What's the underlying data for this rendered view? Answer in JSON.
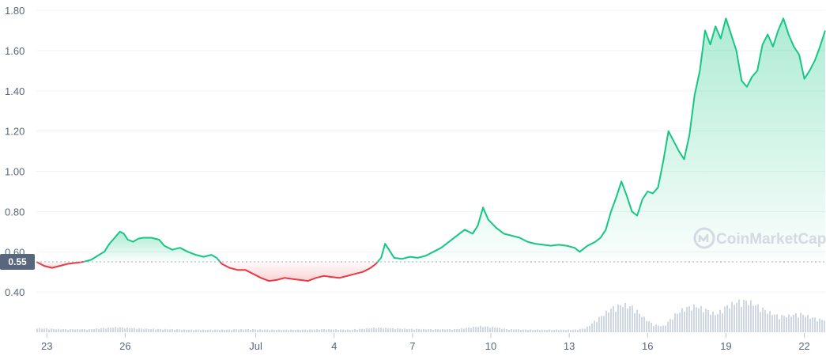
{
  "chart_data": {
    "type": "area",
    "y_ticks": [
      0.4,
      0.6,
      0.8,
      1.0,
      1.2,
      1.4,
      1.6,
      1.8
    ],
    "y_tick_labels": [
      "0.40",
      "0.60",
      "0.80",
      "1.00",
      "1.20",
      "1.40",
      "1.60",
      "1.80"
    ],
    "ylim": [
      0.2,
      1.82
    ],
    "xlim": [
      0,
      30.2
    ],
    "x_ticks": [
      {
        "label": "23",
        "x": 0.4
      },
      {
        "label": "26",
        "x": 3.4
      },
      {
        "label": "Jul",
        "x": 8.4
      },
      {
        "label": "4",
        "x": 11.4
      },
      {
        "label": "7",
        "x": 14.4
      },
      {
        "label": "10",
        "x": 17.4
      },
      {
        "label": "13",
        "x": 20.4
      },
      {
        "label": "16",
        "x": 23.4
      },
      {
        "label": "19",
        "x": 26.4
      },
      {
        "label": "22",
        "x": 29.4
      }
    ],
    "reference": {
      "value": 0.55,
      "label": "0.55"
    },
    "colors": {
      "up": "#16c784",
      "down": "#ea3943",
      "grid": "#eff2f5",
      "volume": "#cfd6e4",
      "ref_bg": "#58667e"
    },
    "watermark": "CoinMarketCap",
    "series": [
      {
        "values": [
          [
            0.0,
            0.55
          ],
          [
            0.3,
            0.53
          ],
          [
            0.6,
            0.52
          ],
          [
            0.9,
            0.53
          ],
          [
            1.2,
            0.54
          ],
          [
            1.5,
            0.545
          ],
          [
            1.8,
            0.55
          ],
          [
            2.1,
            0.56
          ],
          [
            2.4,
            0.585
          ],
          [
            2.6,
            0.6
          ],
          [
            2.8,
            0.64
          ],
          [
            3.0,
            0.67
          ],
          [
            3.2,
            0.7
          ],
          [
            3.35,
            0.69
          ],
          [
            3.5,
            0.66
          ],
          [
            3.7,
            0.65
          ],
          [
            3.9,
            0.665
          ],
          [
            4.1,
            0.67
          ],
          [
            4.4,
            0.67
          ],
          [
            4.7,
            0.66
          ],
          [
            4.9,
            0.63
          ],
          [
            5.2,
            0.61
          ],
          [
            5.5,
            0.62
          ],
          [
            5.8,
            0.6
          ],
          [
            6.1,
            0.585
          ],
          [
            6.4,
            0.575
          ],
          [
            6.7,
            0.585
          ],
          [
            6.9,
            0.57
          ],
          [
            7.1,
            0.54
          ],
          [
            7.4,
            0.52
          ],
          [
            7.7,
            0.51
          ],
          [
            8.0,
            0.51
          ],
          [
            8.3,
            0.49
          ],
          [
            8.6,
            0.47
          ],
          [
            8.9,
            0.455
          ],
          [
            9.2,
            0.46
          ],
          [
            9.5,
            0.47
          ],
          [
            9.8,
            0.465
          ],
          [
            10.1,
            0.46
          ],
          [
            10.4,
            0.455
          ],
          [
            10.7,
            0.47
          ],
          [
            11.0,
            0.48
          ],
          [
            11.3,
            0.475
          ],
          [
            11.6,
            0.47
          ],
          [
            11.9,
            0.48
          ],
          [
            12.2,
            0.49
          ],
          [
            12.5,
            0.5
          ],
          [
            12.8,
            0.52
          ],
          [
            13.0,
            0.54
          ],
          [
            13.2,
            0.57
          ],
          [
            13.35,
            0.64
          ],
          [
            13.5,
            0.61
          ],
          [
            13.7,
            0.57
          ],
          [
            14.0,
            0.565
          ],
          [
            14.3,
            0.575
          ],
          [
            14.6,
            0.57
          ],
          [
            14.9,
            0.58
          ],
          [
            15.2,
            0.6
          ],
          [
            15.5,
            0.62
          ],
          [
            15.8,
            0.65
          ],
          [
            16.1,
            0.68
          ],
          [
            16.4,
            0.71
          ],
          [
            16.7,
            0.69
          ],
          [
            16.9,
            0.73
          ],
          [
            17.1,
            0.82
          ],
          [
            17.3,
            0.76
          ],
          [
            17.6,
            0.72
          ],
          [
            17.9,
            0.69
          ],
          [
            18.2,
            0.68
          ],
          [
            18.5,
            0.67
          ],
          [
            18.8,
            0.65
          ],
          [
            19.1,
            0.64
          ],
          [
            19.4,
            0.635
          ],
          [
            19.7,
            0.63
          ],
          [
            20.0,
            0.635
          ],
          [
            20.3,
            0.63
          ],
          [
            20.6,
            0.62
          ],
          [
            20.8,
            0.6
          ],
          [
            21.1,
            0.63
          ],
          [
            21.4,
            0.65
          ],
          [
            21.6,
            0.67
          ],
          [
            21.8,
            0.71
          ],
          [
            22.0,
            0.8
          ],
          [
            22.2,
            0.87
          ],
          [
            22.4,
            0.95
          ],
          [
            22.6,
            0.88
          ],
          [
            22.8,
            0.8
          ],
          [
            23.0,
            0.78
          ],
          [
            23.2,
            0.86
          ],
          [
            23.4,
            0.9
          ],
          [
            23.6,
            0.89
          ],
          [
            23.8,
            0.92
          ],
          [
            24.0,
            1.05
          ],
          [
            24.2,
            1.2
          ],
          [
            24.4,
            1.15
          ],
          [
            24.6,
            1.1
          ],
          [
            24.8,
            1.06
          ],
          [
            25.0,
            1.18
          ],
          [
            25.2,
            1.38
          ],
          [
            25.4,
            1.5
          ],
          [
            25.6,
            1.7
          ],
          [
            25.8,
            1.63
          ],
          [
            26.0,
            1.72
          ],
          [
            26.2,
            1.66
          ],
          [
            26.4,
            1.76
          ],
          [
            26.6,
            1.68
          ],
          [
            26.8,
            1.6
          ],
          [
            27.0,
            1.45
          ],
          [
            27.2,
            1.42
          ],
          [
            27.4,
            1.47
          ],
          [
            27.6,
            1.5
          ],
          [
            27.8,
            1.63
          ],
          [
            28.0,
            1.68
          ],
          [
            28.2,
            1.62
          ],
          [
            28.4,
            1.7
          ],
          [
            28.6,
            1.76
          ],
          [
            28.8,
            1.68
          ],
          [
            29.0,
            1.62
          ],
          [
            29.2,
            1.58
          ],
          [
            29.4,
            1.46
          ],
          [
            29.6,
            1.5
          ],
          [
            29.8,
            1.55
          ],
          [
            30.0,
            1.62
          ],
          [
            30.2,
            1.7
          ]
        ]
      }
    ],
    "volume": [
      [
        0.0,
        0.08
      ],
      [
        1.0,
        0.06
      ],
      [
        2.0,
        0.06
      ],
      [
        3.0,
        0.1
      ],
      [
        4.0,
        0.07
      ],
      [
        5.0,
        0.06
      ],
      [
        6.0,
        0.05
      ],
      [
        7.0,
        0.05
      ],
      [
        8.0,
        0.06
      ],
      [
        9.0,
        0.05
      ],
      [
        10.0,
        0.05
      ],
      [
        11.0,
        0.06
      ],
      [
        12.0,
        0.05
      ],
      [
        13.0,
        0.09
      ],
      [
        14.0,
        0.07
      ],
      [
        15.0,
        0.06
      ],
      [
        16.0,
        0.06
      ],
      [
        16.5,
        0.09
      ],
      [
        17.0,
        0.12
      ],
      [
        17.5,
        0.1
      ],
      [
        18.0,
        0.06
      ],
      [
        19.0,
        0.05
      ],
      [
        20.0,
        0.05
      ],
      [
        20.6,
        0.05
      ],
      [
        21.0,
        0.08
      ],
      [
        21.5,
        0.28
      ],
      [
        22.0,
        0.48
      ],
      [
        22.4,
        0.55
      ],
      [
        22.8,
        0.5
      ],
      [
        23.2,
        0.3
      ],
      [
        23.6,
        0.15
      ],
      [
        24.0,
        0.12
      ],
      [
        24.4,
        0.34
      ],
      [
        24.8,
        0.48
      ],
      [
        25.2,
        0.52
      ],
      [
        25.6,
        0.45
      ],
      [
        26.0,
        0.35
      ],
      [
        26.4,
        0.52
      ],
      [
        26.8,
        0.6
      ],
      [
        27.2,
        0.62
      ],
      [
        27.6,
        0.52
      ],
      [
        28.0,
        0.4
      ],
      [
        28.4,
        0.32
      ],
      [
        28.8,
        0.33
      ],
      [
        29.2,
        0.37
      ],
      [
        29.6,
        0.3
      ],
      [
        30.0,
        0.25
      ],
      [
        30.2,
        0.25
      ]
    ]
  }
}
